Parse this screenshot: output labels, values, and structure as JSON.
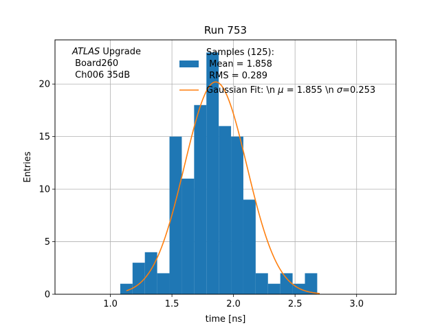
{
  "chart_data": {
    "type": "bar",
    "title": "Run 753",
    "xlabel": "time [ns]",
    "ylabel": "Entries",
    "xlim": [
      0.55,
      3.32
    ],
    "ylim": [
      0,
      24.2
    ],
    "x_ticks": [
      1.0,
      1.5,
      2.0,
      2.5,
      3.0
    ],
    "x_tick_labels": [
      "1.0",
      "1.5",
      "2.0",
      "2.5",
      "3.0"
    ],
    "y_ticks": [
      0,
      5,
      10,
      15,
      20
    ],
    "y_tick_labels": [
      "0",
      "5",
      "10",
      "15",
      "20"
    ],
    "grid": true,
    "legend_position": "top-right",
    "annotation": {
      "experiment": "ATLAS",
      "line1_suffix": " Upgrade",
      "line2": " Board260",
      "line3": " Ch006 35dB"
    },
    "histogram": {
      "name": "Samples (125):",
      "stats_line1": " Mean = 1.858",
      "stats_line2": " RMS = 0.289",
      "color": "#1f77b4",
      "bin_edges": [
        1.08,
        1.18,
        1.28,
        1.38,
        1.48,
        1.58,
        1.68,
        1.78,
        1.88,
        1.98,
        2.08,
        2.18,
        2.28,
        2.38,
        2.48,
        2.58,
        2.68,
        2.78
      ],
      "counts": [
        1,
        3,
        4,
        2,
        15,
        11,
        18,
        23,
        16,
        15,
        9,
        2,
        1,
        2,
        1,
        2,
        0
      ]
    },
    "fit": {
      "name_prefix": "Gaussian Fit: \\n ",
      "mu_symbol": "μ",
      "mu_text": " = 1.855 \\n ",
      "sigma_symbol": "σ",
      "sigma_text": "=0.253",
      "mu": 1.855,
      "sigma": 0.253,
      "amplitude": 20.2,
      "x_range": [
        1.13,
        2.7
      ],
      "color": "#ff7f0e"
    }
  }
}
